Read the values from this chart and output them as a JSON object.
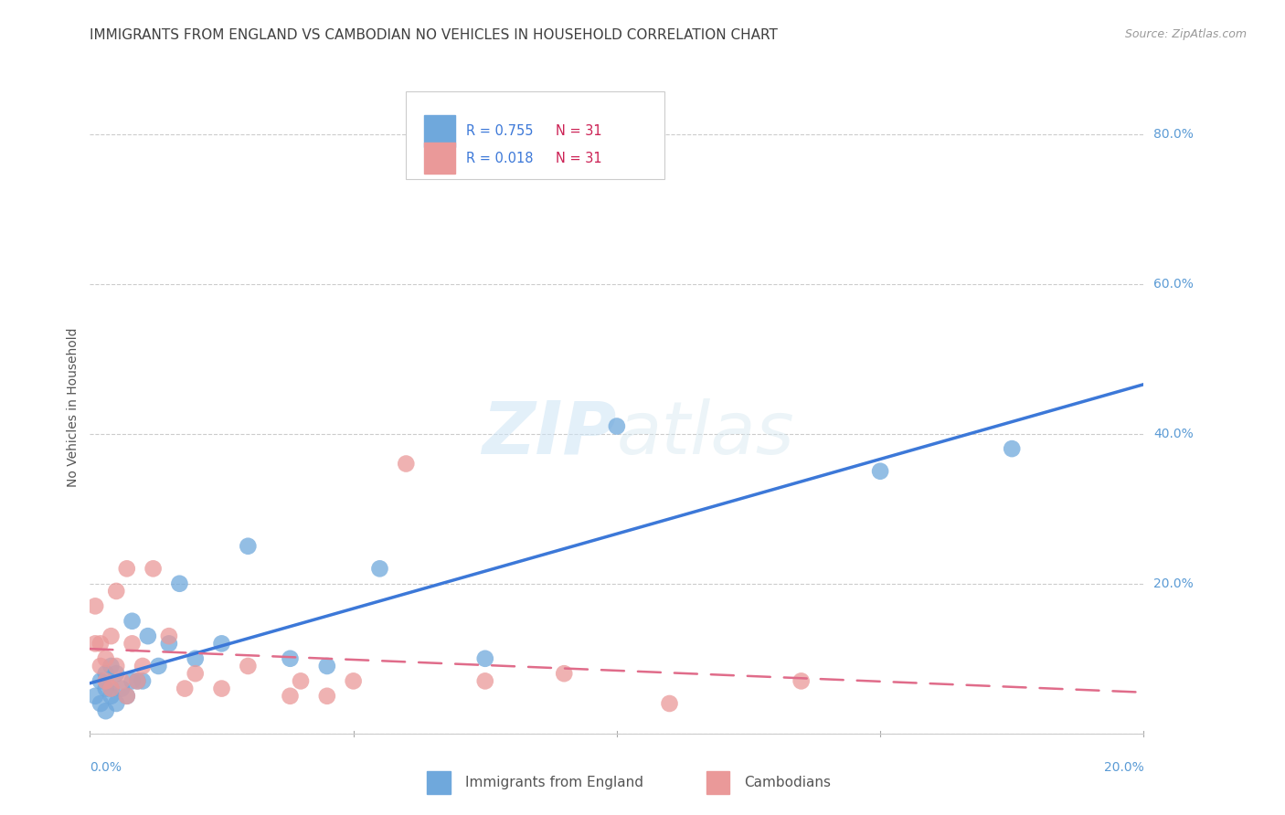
{
  "title": "IMMIGRANTS FROM ENGLAND VS CAMBODIAN NO VEHICLES IN HOUSEHOLD CORRELATION CHART",
  "source": "Source: ZipAtlas.com",
  "ylabel": "No Vehicles in Household",
  "england_color": "#6fa8dc",
  "cambodian_color": "#ea9999",
  "england_line_color": "#3c78d8",
  "cambodian_line_color": "#e06c8a",
  "grid_color": "#cccccc",
  "background_color": "#ffffff",
  "title_color": "#404040",
  "axis_label_color": "#5b9bd5",
  "watermark_color": "#d6e8f7",
  "england_x": [
    0.001,
    0.002,
    0.002,
    0.003,
    0.003,
    0.003,
    0.004,
    0.004,
    0.004,
    0.005,
    0.005,
    0.006,
    0.007,
    0.008,
    0.008,
    0.009,
    0.01,
    0.011,
    0.013,
    0.015,
    0.017,
    0.02,
    0.025,
    0.03,
    0.038,
    0.045,
    0.055,
    0.075,
    0.1,
    0.15,
    0.175
  ],
  "england_y": [
    0.05,
    0.04,
    0.07,
    0.03,
    0.06,
    0.08,
    0.05,
    0.09,
    0.06,
    0.04,
    0.08,
    0.06,
    0.05,
    0.07,
    0.15,
    0.07,
    0.07,
    0.13,
    0.09,
    0.12,
    0.2,
    0.1,
    0.12,
    0.25,
    0.1,
    0.09,
    0.22,
    0.1,
    0.41,
    0.35,
    0.38
  ],
  "cambodian_x": [
    0.001,
    0.001,
    0.002,
    0.002,
    0.003,
    0.003,
    0.004,
    0.004,
    0.005,
    0.005,
    0.006,
    0.007,
    0.007,
    0.008,
    0.009,
    0.01,
    0.012,
    0.015,
    0.018,
    0.02,
    0.025,
    0.03,
    0.038,
    0.04,
    0.045,
    0.05,
    0.06,
    0.075,
    0.09,
    0.11,
    0.135
  ],
  "cambodian_y": [
    0.17,
    0.12,
    0.09,
    0.12,
    0.07,
    0.1,
    0.06,
    0.13,
    0.19,
    0.09,
    0.07,
    0.05,
    0.22,
    0.12,
    0.07,
    0.09,
    0.22,
    0.13,
    0.06,
    0.08,
    0.06,
    0.09,
    0.05,
    0.07,
    0.05,
    0.07,
    0.36,
    0.07,
    0.08,
    0.04,
    0.07
  ],
  "xmin": 0.0,
  "xmax": 0.2,
  "ymin": 0.0,
  "ymax": 0.87,
  "ytick_vals": [
    0.0,
    0.2,
    0.4,
    0.6,
    0.8
  ],
  "ytick_labels": [
    "",
    "20.0%",
    "40.0%",
    "60.0%",
    "80.0%"
  ]
}
